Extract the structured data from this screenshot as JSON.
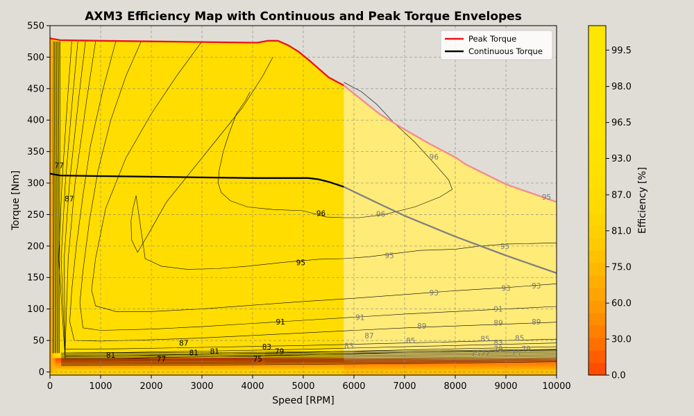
{
  "chart_data": {
    "type": "contour",
    "title": "AXM3 Efficiency Map with Continuous and Peak Torque Envelopes",
    "xlabel": "Speed [RPM]",
    "ylabel": "Torque [Nm]",
    "xlim": [
      0,
      10000
    ],
    "ylim": [
      -5,
      550
    ],
    "xticks": [
      0,
      1000,
      2000,
      3000,
      4000,
      5000,
      6000,
      7000,
      8000,
      9000,
      10000
    ],
    "yticks": [
      0,
      50,
      100,
      150,
      200,
      250,
      300,
      350,
      400,
      450,
      500,
      550
    ],
    "grid": true,
    "legend_position": "top-right",
    "max_speed_shaded_region_start_rpm": 5800,
    "series": [
      {
        "name": "Peak Torque",
        "color": "#ee1111",
        "x": [
          0,
          200,
          1000,
          2000,
          3000,
          4000,
          4100,
          4300,
          4500,
          4700,
          4900,
          5100,
          5300,
          5500,
          5800,
          6500,
          7000,
          7500,
          8000,
          8200,
          8500,
          9000,
          9500,
          10000
        ],
        "y": [
          530,
          527,
          526,
          525,
          524,
          523,
          523,
          526,
          526,
          519,
          509,
          496,
          482,
          468,
          455,
          410,
          385,
          362,
          341,
          330,
          318,
          298,
          284,
          270
        ]
      },
      {
        "name": "Continuous Torque",
        "color": "#000000",
        "x": [
          0,
          200,
          1000,
          2000,
          3000,
          4000,
          4500,
          5000,
          5100,
          5300,
          5500,
          5800,
          6500,
          7000,
          8000,
          9000,
          10000
        ],
        "y": [
          315,
          312,
          311,
          310,
          309,
          308,
          308,
          308,
          308,
          306,
          302,
          294,
          267,
          248,
          215,
          185,
          157
        ]
      }
    ],
    "efficiency_contour_levels": [
      "75",
      "77",
      "79",
      "81",
      "83",
      "85",
      "87",
      "89",
      "91",
      "93",
      "95",
      "96"
    ],
    "contour_labels": [
      {
        "text": "96",
        "x": 5350,
        "y": 252
      },
      {
        "text": "96",
        "x": 6530,
        "y": 251
      },
      {
        "text": "96",
        "x": 7580,
        "y": 342
      },
      {
        "text": "95",
        "x": 4950,
        "y": 174
      },
      {
        "text": "95",
        "x": 6700,
        "y": 185
      },
      {
        "text": "95",
        "x": 8980,
        "y": 200
      },
      {
        "text": "95",
        "x": 9800,
        "y": 278
      },
      {
        "text": "93",
        "x": 7580,
        "y": 126
      },
      {
        "text": "93",
        "x": 9000,
        "y": 133
      },
      {
        "text": "93",
        "x": 9600,
        "y": 137
      },
      {
        "text": "91",
        "x": 4550,
        "y": 80
      },
      {
        "text": "91",
        "x": 6120,
        "y": 87
      },
      {
        "text": "91",
        "x": 8850,
        "y": 100
      },
      {
        "text": "89",
        "x": 7340,
        "y": 73
      },
      {
        "text": "89",
        "x": 8850,
        "y": 78
      },
      {
        "text": "89",
        "x": 9600,
        "y": 80
      },
      {
        "text": "87",
        "x": 2640,
        "y": 46
      },
      {
        "text": "87",
        "x": 6300,
        "y": 58
      },
      {
        "text": "87",
        "x": 380,
        "y": 275
      },
      {
        "text": "85",
        "x": 7120,
        "y": 50
      },
      {
        "text": "85",
        "x": 8590,
        "y": 53
      },
      {
        "text": "85",
        "x": 9270,
        "y": 54
      },
      {
        "text": "83",
        "x": 4280,
        "y": 40
      },
      {
        "text": "83",
        "x": 5900,
        "y": 42
      },
      {
        "text": "83",
        "x": 8850,
        "y": 47
      },
      {
        "text": "81",
        "x": 1200,
        "y": 27
      },
      {
        "text": "81",
        "x": 2840,
        "y": 31
      },
      {
        "text": "81",
        "x": 3250,
        "y": 33
      },
      {
        "text": "79",
        "x": 4530,
        "y": 33
      },
      {
        "text": "79",
        "x": 8850,
        "y": 37
      },
      {
        "text": "79",
        "x": 9400,
        "y": 37
      },
      {
        "text": "77",
        "x": 2200,
        "y": 21
      },
      {
        "text": "77",
        "x": 8600,
        "y": 31
      },
      {
        "text": "77",
        "x": 180,
        "y": 328
      },
      {
        "text": "75",
        "x": 4100,
        "y": 21
      },
      {
        "text": "75",
        "x": 8400,
        "y": 29
      },
      {
        "text": "75",
        "x": 9200,
        "y": 30
      }
    ],
    "colorbar": {
      "label": "Efficiency [%]",
      "ticks": [
        "0.0",
        "30.0",
        "60.0",
        "75.0",
        "81.0",
        "87.0",
        "93.0",
        "96.5",
        "98.0",
        "99.5"
      ],
      "colors": [
        "#ff4d00",
        "#ff5e00",
        "#ff6f00",
        "#ff7f00",
        "#ff8d00",
        "#ff9900",
        "#ffa400",
        "#ffae00",
        "#ffb800",
        "#ffc100",
        "#ffca00",
        "#ffd000",
        "#ffd500",
        "#ffd900",
        "#ffdc00",
        "#ffdf00",
        "#ffe100",
        "#ffe200",
        "#ffe300",
        "#ffe400",
        "#ffe400",
        "#ffe500",
        "#ffe500",
        "#ffe500",
        "#ffe600",
        "#ffe600",
        "#ffe600",
        "#ffe600"
      ]
    }
  }
}
